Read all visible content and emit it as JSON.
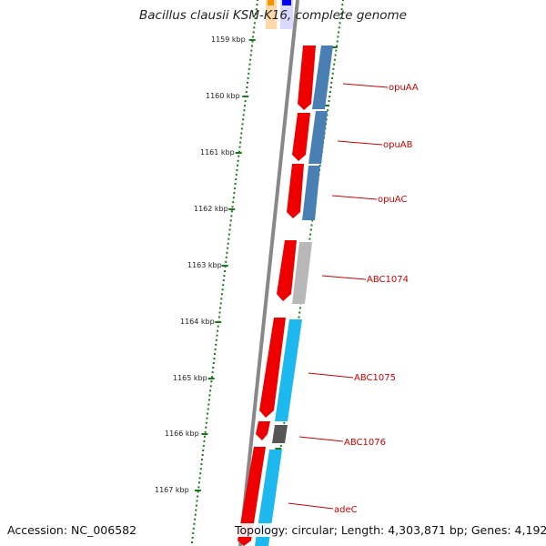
{
  "map": {
    "title": "Bacillus clausii KSM-K16, complete genome",
    "accession": "Accession: NC_006582",
    "summary": "Topology: circular; Length: 4,303,871 bp; Genes: 4,192"
  },
  "scale_labels": [
    "1159 kbp",
    "1160 kbp",
    "1161 kbp",
    "1162 kbp",
    "1163 kbp",
    "1164 kbp",
    "1165 kbp",
    "1166 kbp",
    "1167 kbp"
  ],
  "genes": [
    {
      "name": "opuAA"
    },
    {
      "name": "opuAB"
    },
    {
      "name": "opuAC"
    },
    {
      "name": "ABC1074"
    },
    {
      "name": "ABC1075"
    },
    {
      "name": "ABC1076"
    },
    {
      "name": "adeC"
    }
  ],
  "colors": {
    "gene_forward": "#ee0000",
    "cog_steel": "#4a7fb3",
    "cog_gray": "#b8b8b8",
    "cog_cyan": "#1cb8ee",
    "cog_dark": "#555555",
    "tick_green": "#1a7a1a",
    "label_red": "#cc0000",
    "backbone": "#888888"
  }
}
